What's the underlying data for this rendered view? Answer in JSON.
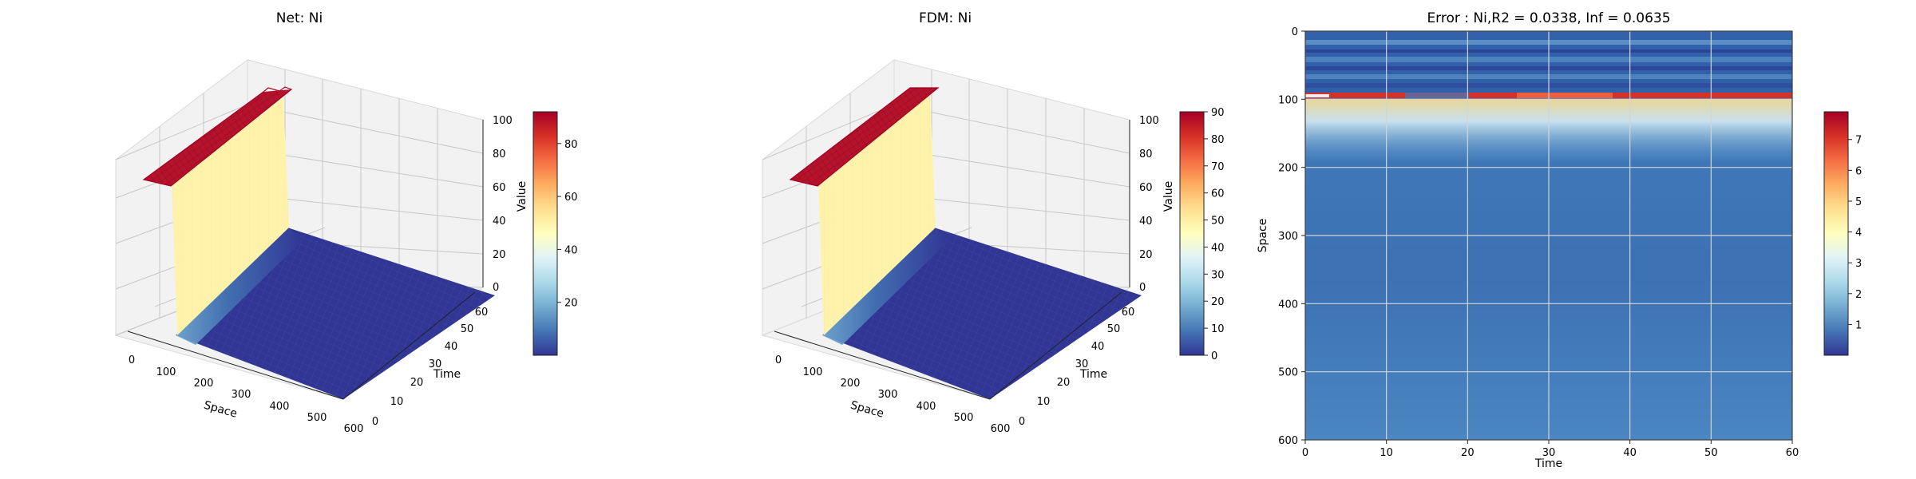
{
  "chart_data": [
    {
      "type": "surface3d",
      "title": "Net: Ni",
      "xlabel": "Space",
      "ylabel": "Time",
      "zlabel": "Value",
      "xlim": [
        0,
        600
      ],
      "ylim": [
        0,
        60
      ],
      "zlim": [
        0,
        100
      ],
      "x_ticks": [
        "0",
        "100",
        "200",
        "300",
        "400",
        "500",
        "600"
      ],
      "y_ticks": [
        "0",
        "10",
        "20",
        "30",
        "40",
        "50",
        "60"
      ],
      "z_ticks": [
        "0",
        "20",
        "40",
        "60",
        "80",
        "100"
      ],
      "colorbar_ticks": [
        "20",
        "40",
        "60",
        "80"
      ],
      "colorbar_range": [
        0,
        92
      ],
      "surface": {
        "plateau_value": 92,
        "plateau_x": [
          0,
          100
        ],
        "wall_value": 45,
        "floor_value": 0
      }
    },
    {
      "type": "surface3d",
      "title": "FDM: Ni",
      "xlabel": "Space",
      "ylabel": "Time",
      "zlabel": "Value",
      "xlim": [
        0,
        600
      ],
      "ylim": [
        0,
        60
      ],
      "zlim": [
        0,
        100
      ],
      "x_ticks": [
        "0",
        "100",
        "200",
        "300",
        "400",
        "500",
        "600"
      ],
      "y_ticks": [
        "0",
        "10",
        "20",
        "30",
        "40",
        "50",
        "60"
      ],
      "z_ticks": [
        "0",
        "20",
        "40",
        "60",
        "80",
        "100"
      ],
      "colorbar_ticks": [
        "0",
        "10",
        "20",
        "30",
        "40",
        "50",
        "60",
        "70",
        "80",
        "90"
      ],
      "colorbar_range": [
        0,
        90
      ],
      "surface": {
        "plateau_value": 90,
        "plateau_x": [
          0,
          100
        ],
        "wall_value": 45,
        "floor_value": 0
      }
    },
    {
      "type": "heatmap",
      "title": "Error : Ni,R2 = 0.0338, Inf = 0.0635",
      "xlabel": "Time",
      "ylabel": "Space",
      "xlim": [
        0,
        60
      ],
      "ylim": [
        600,
        0
      ],
      "x_ticks": [
        "0",
        "10",
        "20",
        "30",
        "40",
        "50",
        "60"
      ],
      "y_ticks": [
        "0",
        "100",
        "200",
        "300",
        "400",
        "500",
        "600"
      ],
      "grid": true,
      "colorbar_ticks": [
        "1",
        "2",
        "3",
        "4",
        "5",
        "6",
        "7"
      ],
      "colorbar_range": [
        0,
        7.9
      ],
      "peak": {
        "space": 100,
        "value": 7.6
      }
    }
  ]
}
